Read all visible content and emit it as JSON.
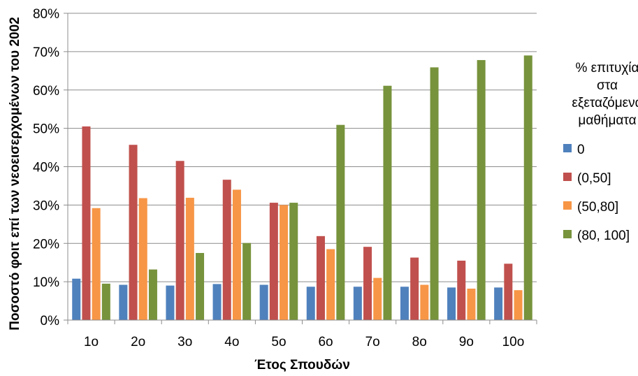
{
  "chart_data": {
    "type": "bar",
    "title": "",
    "xlabel": "Έτος Σπουδών",
    "ylabel": "Ποσοστό  φοιτ επί των νεοεισερχομένων του 2002",
    "ylim": [
      0,
      80
    ],
    "y_ticks": [
      "0%",
      "10%",
      "20%",
      "30%",
      "40%",
      "50%",
      "60%",
      "70%",
      "80%"
    ],
    "y_tick_values": [
      0,
      10,
      20,
      30,
      40,
      50,
      60,
      70,
      80
    ],
    "grid": true,
    "legend_position": "right",
    "legend_title": [
      "% επιτυχία",
      "στα",
      "εξεταζόμενα",
      "μαθήματα"
    ],
    "categories": [
      "1ο",
      "2ο",
      "3ο",
      "4ο",
      "5ο",
      "6ο",
      "7ο",
      "8ο",
      "9ο",
      "10ο"
    ],
    "series": [
      {
        "name": "0",
        "color": "#4f81bd",
        "values": [
          10.8,
          9.2,
          9.0,
          9.4,
          9.2,
          8.7,
          8.7,
          8.7,
          8.5,
          8.5
        ]
      },
      {
        "name": "(0,50]",
        "color": "#c0504d",
        "values": [
          50.5,
          45.7,
          41.5,
          36.6,
          30.6,
          21.9,
          19.1,
          16.3,
          15.5,
          14.7
        ]
      },
      {
        "name": "(50,80]",
        "color": "#f79646",
        "values": [
          29.2,
          31.8,
          31.9,
          34.0,
          30.0,
          18.5,
          11.0,
          9.2,
          8.2,
          7.8
        ]
      },
      {
        "name": "(80, 100]",
        "color": "#77933c",
        "values": [
          9.5,
          13.2,
          17.5,
          20.1,
          30.6,
          50.9,
          61.1,
          65.9,
          67.8,
          69.0
        ]
      }
    ]
  }
}
